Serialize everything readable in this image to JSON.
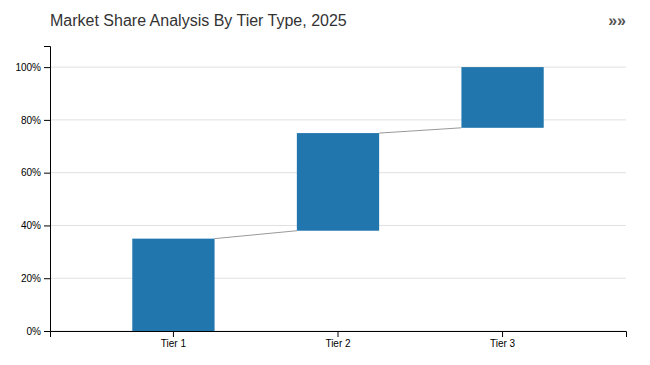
{
  "chart_data": {
    "type": "bar",
    "title": "Market Share Analysis By Tier Type, 2025",
    "annotation": "»»",
    "categories": [
      "Tier 1",
      "Tier 2",
      "Tier 3"
    ],
    "values": [
      35,
      37,
      23
    ],
    "bottoms": [
      0,
      38,
      77
    ],
    "color": "#2176AE",
    "ylim": [
      0,
      108
    ],
    "yticks": [
      {
        "value": 0,
        "label": "0%"
      },
      {
        "value": 20,
        "label": "20%"
      },
      {
        "value": 40,
        "label": "40%"
      },
      {
        "value": 60,
        "label": "60%"
      },
      {
        "value": 80,
        "label": "80%"
      },
      {
        "value": 100,
        "label": "100%"
      }
    ],
    "grid": true
  }
}
